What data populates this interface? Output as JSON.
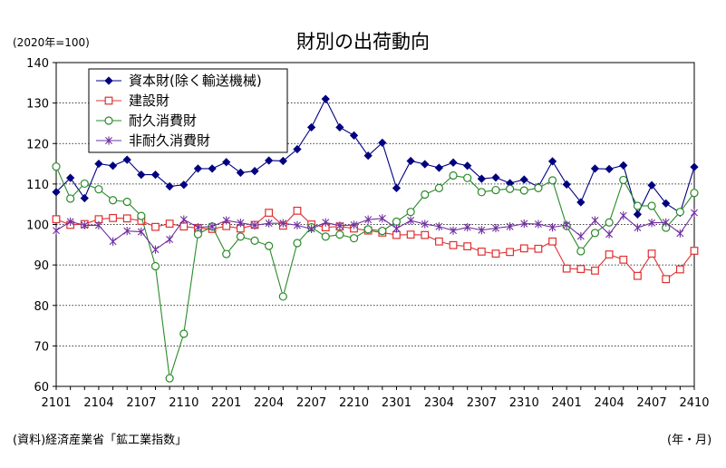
{
  "chart_data": {
    "type": "line",
    "title": "財別の出荷動向",
    "unit_label": "(2020年=100)",
    "source_note": "(資料)経済産業省「鉱工業指数」",
    "x_unit_label": "(年・月)",
    "ylim": [
      60,
      140
    ],
    "yticks": [
      60,
      70,
      80,
      90,
      100,
      110,
      120,
      130,
      140
    ],
    "grid": "horizontal dotted",
    "legend_position": "top-left",
    "x": [
      "2101",
      "2102",
      "2103",
      "2104",
      "2105",
      "2106",
      "2107",
      "2108",
      "2109",
      "2110",
      "2111",
      "2112",
      "2201",
      "2202",
      "2203",
      "2204",
      "2205",
      "2206",
      "2207",
      "2208",
      "2209",
      "2210",
      "2211",
      "2212",
      "2301",
      "2302",
      "2303",
      "2304",
      "2305",
      "2306",
      "2307",
      "2308",
      "2309",
      "2310",
      "2311",
      "2312",
      "2401",
      "2402",
      "2403",
      "2404",
      "2405",
      "2406",
      "2407",
      "2408",
      "2409",
      "2410"
    ],
    "xtick_labels": [
      "2101",
      "2104",
      "2107",
      "2110",
      "2201",
      "2204",
      "2207",
      "2210",
      "2301",
      "2304",
      "2307",
      "2310",
      "2401",
      "2404",
      "2407",
      "2410"
    ],
    "series": [
      {
        "name": "資本財(除く輸送機械)",
        "color": "#000080",
        "marker": "diamond",
        "values": [
          108.0,
          111.5,
          106.5,
          115.0,
          114.5,
          116.0,
          112.3,
          112.3,
          109.4,
          109.8,
          113.8,
          113.8,
          115.4,
          112.8,
          113.2,
          115.8,
          115.7,
          118.6,
          124.0,
          131.0,
          124.0,
          122.0,
          117.0,
          120.2,
          109.0,
          115.7,
          114.9,
          114.0,
          115.3,
          114.5,
          111.3,
          111.6,
          110.2,
          111.1,
          109.3,
          115.6,
          109.9,
          105.5,
          113.8,
          113.7,
          114.6,
          102.5,
          109.7,
          105.2,
          102.9,
          114.2
        ]
      },
      {
        "name": "建設財",
        "color": "#e03030",
        "marker": "square",
        "values": [
          101.3,
          99.9,
          100.1,
          101.3,
          101.6,
          101.5,
          100.9,
          99.4,
          100.2,
          99.5,
          99.1,
          98.9,
          99.6,
          99.0,
          99.9,
          102.9,
          99.7,
          103.4,
          100.0,
          99.3,
          99.5,
          99.0,
          98.5,
          98.0,
          97.4,
          97.5,
          97.4,
          95.8,
          94.9,
          94.6,
          93.3,
          92.8,
          93.2,
          94.1,
          94.0,
          95.8,
          89.1,
          89.0,
          88.6,
          92.6,
          91.3,
          87.3,
          92.8,
          86.5,
          88.9,
          93.5
        ]
      },
      {
        "name": "耐久消費財",
        "color": "#2a8a2a",
        "marker": "circle",
        "values": [
          114.3,
          106.4,
          110.1,
          108.7,
          106.0,
          105.6,
          102.1,
          89.7,
          62.0,
          73.0,
          97.6,
          99.5,
          92.7,
          97.0,
          96.0,
          94.7,
          82.2,
          95.4,
          99.3,
          97.0,
          97.5,
          96.6,
          98.8,
          98.4,
          100.7,
          103.1,
          107.4,
          109.0,
          112.1,
          111.5,
          108.0,
          108.5,
          108.8,
          108.4,
          109.0,
          110.9,
          99.6,
          93.4,
          97.9,
          100.5,
          111.0,
          104.6,
          104.6,
          99.2,
          103.1,
          107.8
        ]
      },
      {
        "name": "非耐久消費財",
        "color": "#7030a0",
        "marker": "x",
        "values": [
          98.5,
          100.7,
          99.8,
          99.8,
          95.8,
          98.4,
          98.2,
          93.8,
          96.3,
          101.2,
          99.3,
          99.5,
          101.0,
          100.4,
          99.8,
          100.3,
          100.3,
          99.8,
          98.9,
          100.5,
          99.7,
          99.9,
          101.2,
          101.5,
          99.0,
          101.0,
          100.1,
          99.5,
          98.5,
          99.3,
          98.6,
          99.1,
          99.5,
          100.2,
          100.1,
          99.3,
          99.9,
          97.1,
          101.0,
          97.6,
          102.2,
          99.2,
          100.4,
          100.5,
          97.8,
          102.9
        ]
      }
    ]
  }
}
